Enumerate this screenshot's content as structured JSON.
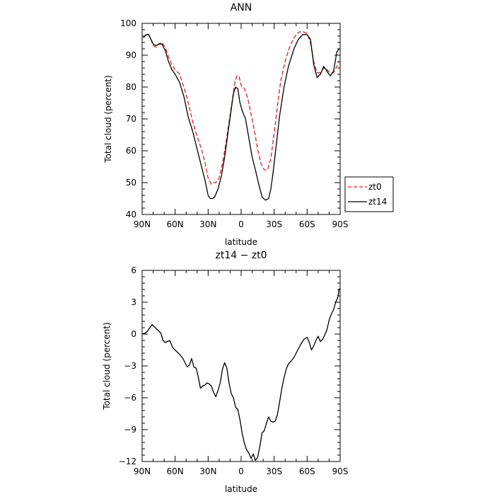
{
  "chart_data": [
    {
      "type": "line",
      "title": "ANN",
      "xlabel": "latitude",
      "ylabel": "Total cloud (percent)",
      "xlim": [
        90,
        -90
      ],
      "ylim": [
        40,
        100
      ],
      "x_ticks": [
        90,
        60,
        30,
        0,
        -30,
        -60,
        -90
      ],
      "x_tick_labels": [
        "90N",
        "60N",
        "30N",
        "0",
        "30S",
        "60S",
        "90S"
      ],
      "y_ticks": [
        40,
        50,
        60,
        70,
        80,
        90,
        100
      ],
      "y_tick_labels": [
        "40",
        "50",
        "60",
        "70",
        "80",
        "90",
        "100"
      ],
      "grid": false,
      "legend_position": "outside-right",
      "series": [
        {
          "name": "zt0",
          "color": "#e31a1c",
          "dash": "dashed",
          "x": [
            89,
            86,
            84,
            82,
            80,
            77,
            75,
            72,
            69,
            66,
            63,
            60,
            56,
            52,
            48,
            44,
            40,
            36,
            33,
            30,
            27,
            25,
            23,
            20,
            17,
            14,
            11,
            8,
            6,
            4,
            2,
            0,
            -3,
            -6,
            -9,
            -12,
            -15,
            -18,
            -21,
            -24,
            -27,
            -30,
            -33,
            -36,
            -40,
            -44,
            -48,
            -52,
            -56,
            -60,
            -63,
            -66,
            -69,
            -72,
            -75,
            -78,
            -81,
            -84,
            -87,
            -89
          ],
          "y": [
            95.5,
            96.8,
            96.5,
            95,
            93,
            92.5,
            93.5,
            94,
            92.5,
            89.5,
            87,
            85.5,
            84,
            80,
            75,
            69,
            64.5,
            60.5,
            56.5,
            51.5,
            49.5,
            50,
            50,
            51.5,
            56,
            62,
            69,
            76,
            81,
            83.5,
            83.5,
            80.5,
            79.5,
            76.5,
            71.5,
            66.5,
            60.5,
            56,
            54,
            54,
            57.5,
            65.5,
            74,
            82,
            88,
            92.5,
            95.5,
            97.2,
            97.5,
            96.8,
            94,
            88,
            84.5,
            84.5,
            86,
            85.5,
            84.5,
            84.5,
            86.5,
            88
          ]
        },
        {
          "name": "zt14",
          "color": "#000000",
          "dash": "solid",
          "x": [
            89,
            86,
            84,
            82,
            80,
            77,
            75,
            72,
            69,
            66,
            63,
            60,
            56,
            52,
            48,
            44,
            40,
            36,
            33,
            30,
            28,
            26,
            24,
            21,
            18,
            15,
            12,
            9,
            7,
            5,
            3,
            1,
            -1,
            -4,
            -7,
            -10,
            -13,
            -16,
            -19,
            -22,
            -25,
            -27,
            -29,
            -32,
            -35,
            -39,
            -43,
            -48,
            -52,
            -56,
            -60,
            -63,
            -66,
            -69,
            -72,
            -75,
            -78,
            -81,
            -84,
            -87,
            -89
          ],
          "y": [
            95.5,
            96.5,
            96.5,
            95,
            93.5,
            93,
            93.5,
            93.5,
            91.5,
            88,
            85.5,
            84,
            81.5,
            77,
            70.5,
            66,
            60.5,
            55,
            51,
            46,
            45,
            45,
            45.5,
            48,
            52,
            58,
            65.5,
            73,
            78,
            80,
            79.5,
            75,
            72.5,
            70,
            64,
            58,
            54,
            49.5,
            45.5,
            44.5,
            45,
            48,
            53,
            62,
            71,
            80,
            86.5,
            92,
            95,
            96.5,
            96.5,
            95,
            87,
            83,
            84,
            86.5,
            85,
            83.5,
            85,
            91,
            92
          ]
        }
      ]
    },
    {
      "type": "line",
      "title": "zt14 − zt0",
      "xlabel": "latitude",
      "ylabel": "Total cloud (percent)",
      "xlim": [
        90,
        -90
      ],
      "ylim": [
        -12,
        6
      ],
      "x_ticks": [
        90,
        60,
        30,
        0,
        -30,
        -60,
        -90
      ],
      "x_tick_labels": [
        "90N",
        "60N",
        "30N",
        "0",
        "30S",
        "60S",
        "90S"
      ],
      "y_ticks": [
        -12,
        -9,
        -6,
        -3,
        0,
        3,
        6
      ],
      "y_tick_labels": [
        "−12",
        "−9",
        "−6",
        "−3",
        "0",
        "3",
        "6"
      ],
      "grid": false,
      "series": [
        {
          "color": "#000000",
          "dash": "solid",
          "x": [
            90,
            87,
            85,
            83,
            81,
            79,
            77,
            75,
            73,
            71,
            69,
            67,
            65,
            62,
            59,
            56,
            53,
            51,
            49,
            47,
            45,
            43,
            41,
            39,
            37,
            35,
            33,
            31,
            29,
            27,
            25,
            23,
            21,
            19,
            17,
            15,
            13,
            11,
            9,
            7,
            5,
            3,
            1,
            -1,
            -3,
            -5,
            -7,
            -9,
            -11,
            -13,
            -15,
            -17,
            -19,
            -21,
            -23,
            -25,
            -27,
            -29,
            -31,
            -33,
            -35,
            -37,
            -39,
            -41,
            -43,
            -45,
            -48,
            -51,
            -54,
            -57,
            -60,
            -62,
            -64,
            -66,
            -68,
            -70,
            -72,
            -74,
            -76,
            -78,
            -80,
            -82,
            -84,
            -86,
            -88,
            -89,
            -90
          ],
          "y": [
            0,
            0.1,
            0.3,
            0.6,
            0.9,
            0.7,
            0.5,
            0.3,
            0.1,
            -0.6,
            -0.8,
            -0.7,
            -0.6,
            -1.3,
            -1.6,
            -1.9,
            -2.3,
            -2.7,
            -3.1,
            -2.9,
            -2.3,
            -3.1,
            -3.2,
            -4.0,
            -5.1,
            -4.9,
            -4.8,
            -4.6,
            -4.7,
            -4.9,
            -5.5,
            -5.9,
            -5.3,
            -4.6,
            -3.3,
            -2.7,
            -3.2,
            -4.6,
            -5.6,
            -6.0,
            -6.9,
            -7.1,
            -8.1,
            -9.4,
            -10.3,
            -10.9,
            -11.2,
            -11.7,
            -11.3,
            -11.9,
            -11.6,
            -10.6,
            -9.3,
            -9.1,
            -8.4,
            -7.8,
            -8.2,
            -8.3,
            -8.2,
            -7.6,
            -6.4,
            -5.1,
            -4.1,
            -3.3,
            -2.8,
            -2.6,
            -2.2,
            -1.6,
            -1.0,
            -0.5,
            -0.3,
            -0.8,
            -1.5,
            -1.1,
            -0.6,
            -0.2,
            -0.7,
            -0.5,
            -0.1,
            0.4,
            1.3,
            1.9,
            2.3,
            3.0,
            3.5,
            4.2,
            4.3
          ]
        }
      ]
    }
  ]
}
